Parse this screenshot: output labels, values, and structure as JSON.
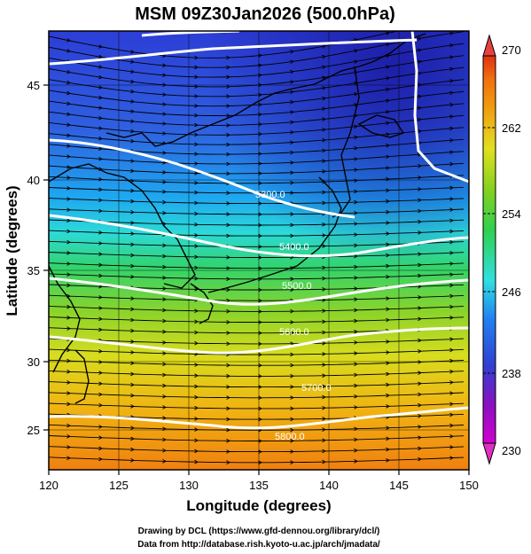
{
  "title": "MSM 09Z30Jan2026 (500.0hPa)",
  "x_axis": {
    "label": "Longitude (degrees)",
    "range": [
      120,
      150
    ],
    "ticks": [
      "120",
      "125",
      "130",
      "135",
      "140",
      "145",
      "150"
    ]
  },
  "y_axis": {
    "label": "Latitude  (degrees)",
    "range": [
      22.5,
      47.6
    ],
    "ticks": [
      "25",
      "30",
      "35",
      "40",
      "45"
    ]
  },
  "colorbar": {
    "min_label": "230",
    "max_label": "270",
    "tick_labels": [
      "230",
      "238",
      "246",
      "254",
      "262",
      "270"
    ],
    "tick_values": [
      230,
      238,
      246,
      254,
      262,
      270
    ],
    "colors": [
      "#d000d0",
      "#9010c0",
      "#3040d0",
      "#20a0f0",
      "#30e0e0",
      "#30d050",
      "#80d020",
      "#e0e020",
      "#f0a010",
      "#f07010",
      "#e03010",
      "#e84040"
    ]
  },
  "contours": {
    "labels": [
      "5300.0",
      "5400.0",
      "5500.0",
      "5600.0",
      "5700.0",
      "5800.0"
    ],
    "color": "#ffffff"
  },
  "credits": [
    "Drawing by DCL (https://www.gfd-dennou.org/library/dcl/)",
    "Data from http://database.rish.kyoto-u.ac.jp/arch/jmadata/"
  ]
}
